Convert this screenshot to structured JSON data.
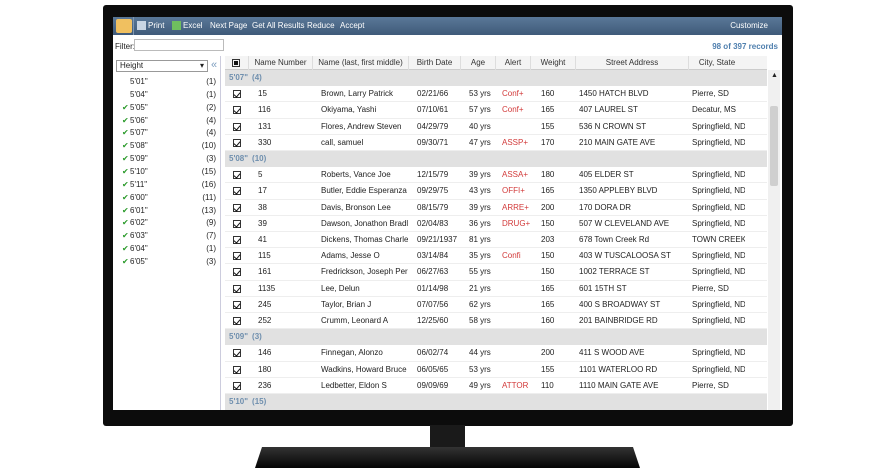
{
  "toolbar": {
    "items": [
      "Print",
      "Excel",
      "Next Page",
      "Get All Results",
      "Reduce",
      "Accept"
    ],
    "customize": "Customize"
  },
  "filter": {
    "label": "Filter:",
    "records": "98 of 397 records"
  },
  "sidebar": {
    "dropdown": "Height",
    "items": [
      {
        "label": "5'01\"",
        "count": "(1)",
        "checked": false
      },
      {
        "label": "5'04\"",
        "count": "(1)",
        "checked": false
      },
      {
        "label": "5'05\"",
        "count": "(2)",
        "checked": true
      },
      {
        "label": "5'06\"",
        "count": "(4)",
        "checked": true
      },
      {
        "label": "5'07\"",
        "count": "(4)",
        "checked": true
      },
      {
        "label": "5'08\"",
        "count": "(10)",
        "checked": true
      },
      {
        "label": "5'09\"",
        "count": "(3)",
        "checked": true
      },
      {
        "label": "5'10\"",
        "count": "(15)",
        "checked": true
      },
      {
        "label": "5'11\"",
        "count": "(16)",
        "checked": true
      },
      {
        "label": "6'00\"",
        "count": "(11)",
        "checked": true
      },
      {
        "label": "6'01\"",
        "count": "(13)",
        "checked": true
      },
      {
        "label": "6'02\"",
        "count": "(9)",
        "checked": true
      },
      {
        "label": "6'03\"",
        "count": "(7)",
        "checked": true
      },
      {
        "label": "6'04\"",
        "count": "(1)",
        "checked": true
      },
      {
        "label": "6'05\"",
        "count": "(3)",
        "checked": true
      }
    ]
  },
  "table": {
    "columns": [
      "Name Number",
      "Name (last, first middle)",
      "Birth Date",
      "Age",
      "Alert",
      "Weight",
      "Street Address",
      "City, State"
    ],
    "groups": [
      {
        "label": "5'07\"",
        "count": "(4)",
        "rows": [
          [
            "15",
            "Brown, Larry Patrick",
            "02/21/66",
            "53 yrs",
            "Conf+",
            "160",
            "1450 HATCH BLVD",
            "Pierre, SD"
          ],
          [
            "116",
            "Okiyama, Yashi",
            "07/10/61",
            "57 yrs",
            "Conf+",
            "165",
            "407 LAUREL ST",
            "Decatur, MS"
          ],
          [
            "131",
            "Flores, Andrew Steven",
            "04/29/79",
            "40 yrs",
            null,
            "155",
            "536 N CROWN ST",
            "Springfield, ND"
          ],
          [
            "330",
            "call, samuel",
            "09/30/71",
            "47 yrs",
            "ASSP+",
            "170",
            "210 MAIN GATE AVE",
            "Springfield, ND"
          ]
        ]
      },
      {
        "label": "5'08\"",
        "count": "(10)",
        "rows": [
          [
            "5",
            "Roberts, Vance Joe",
            "12/15/79",
            "39 yrs",
            "ASSA+",
            "180",
            "405 ELDER ST",
            "Springfield, ND"
          ],
          [
            "17",
            "Butler, Eddie Esperanza",
            "09/29/75",
            "43 yrs",
            "OFFI+",
            "165",
            "1350 APPLEBY BLVD",
            "Springfield, ND"
          ],
          [
            "38",
            "Davis, Bronson Lee",
            "08/15/79",
            "39 yrs",
            "ARRE+",
            "200",
            "170 DORA DR",
            "Springfield, ND"
          ],
          [
            "39",
            "Dawson, Jonathon Bradle",
            "02/04/83",
            "36 yrs",
            "DRUG+",
            "150",
            "507 W CLEVELAND AVE",
            "Springfield, ND"
          ],
          [
            "41",
            "Dickens, Thomas Charles",
            "09/21/1937",
            "81 yrs",
            null,
            "203",
            "678 Town Creek Rd",
            "TOWN CREEK,"
          ],
          [
            "115",
            "Adams, Jesse O",
            "03/14/84",
            "35 yrs",
            "Confi",
            "150",
            "403 W TUSCALOOSA ST",
            "Springfield, ND"
          ],
          [
            "161",
            "Fredrickson, Joseph Perry",
            "06/27/63",
            "55 yrs",
            null,
            "150",
            "1002 TERRACE ST",
            "Springfield, ND"
          ],
          [
            "1135",
            "Lee, Delun",
            "01/14/98",
            "21 yrs",
            null,
            "165",
            "601 15TH ST",
            "Pierre, SD"
          ],
          [
            "245",
            "Taylor, Brian J",
            "07/07/56",
            "62 yrs",
            null,
            "165",
            "400 S BROADWAY ST",
            "Springfield, ND"
          ],
          [
            "252",
            "Crumm, Leonard A",
            "12/25/60",
            "58 yrs",
            null,
            "160",
            "201 BAINBRIDGE RD",
            "Springfield, ND"
          ]
        ]
      },
      {
        "label": "5'09\"",
        "count": "(3)",
        "rows": [
          [
            "146",
            "Finnegan, Alonzo",
            "06/02/74",
            "44 yrs",
            null,
            "200",
            "411 S WOOD AVE",
            "Springfield, ND"
          ],
          [
            "180",
            "Wadkins, Howard Bruce",
            "06/05/65",
            "53 yrs",
            null,
            "155",
            "1101 WATERLOO RD",
            "Springfield, ND"
          ],
          [
            "236",
            "Ledbetter, Eldon S",
            "09/09/69",
            "49 yrs",
            "ATTOR",
            "110",
            "1110 MAIN GATE AVE",
            "Pierre, SD"
          ]
        ]
      },
      {
        "label": "5'10\"",
        "count": "(15)",
        "rows": []
      }
    ]
  }
}
